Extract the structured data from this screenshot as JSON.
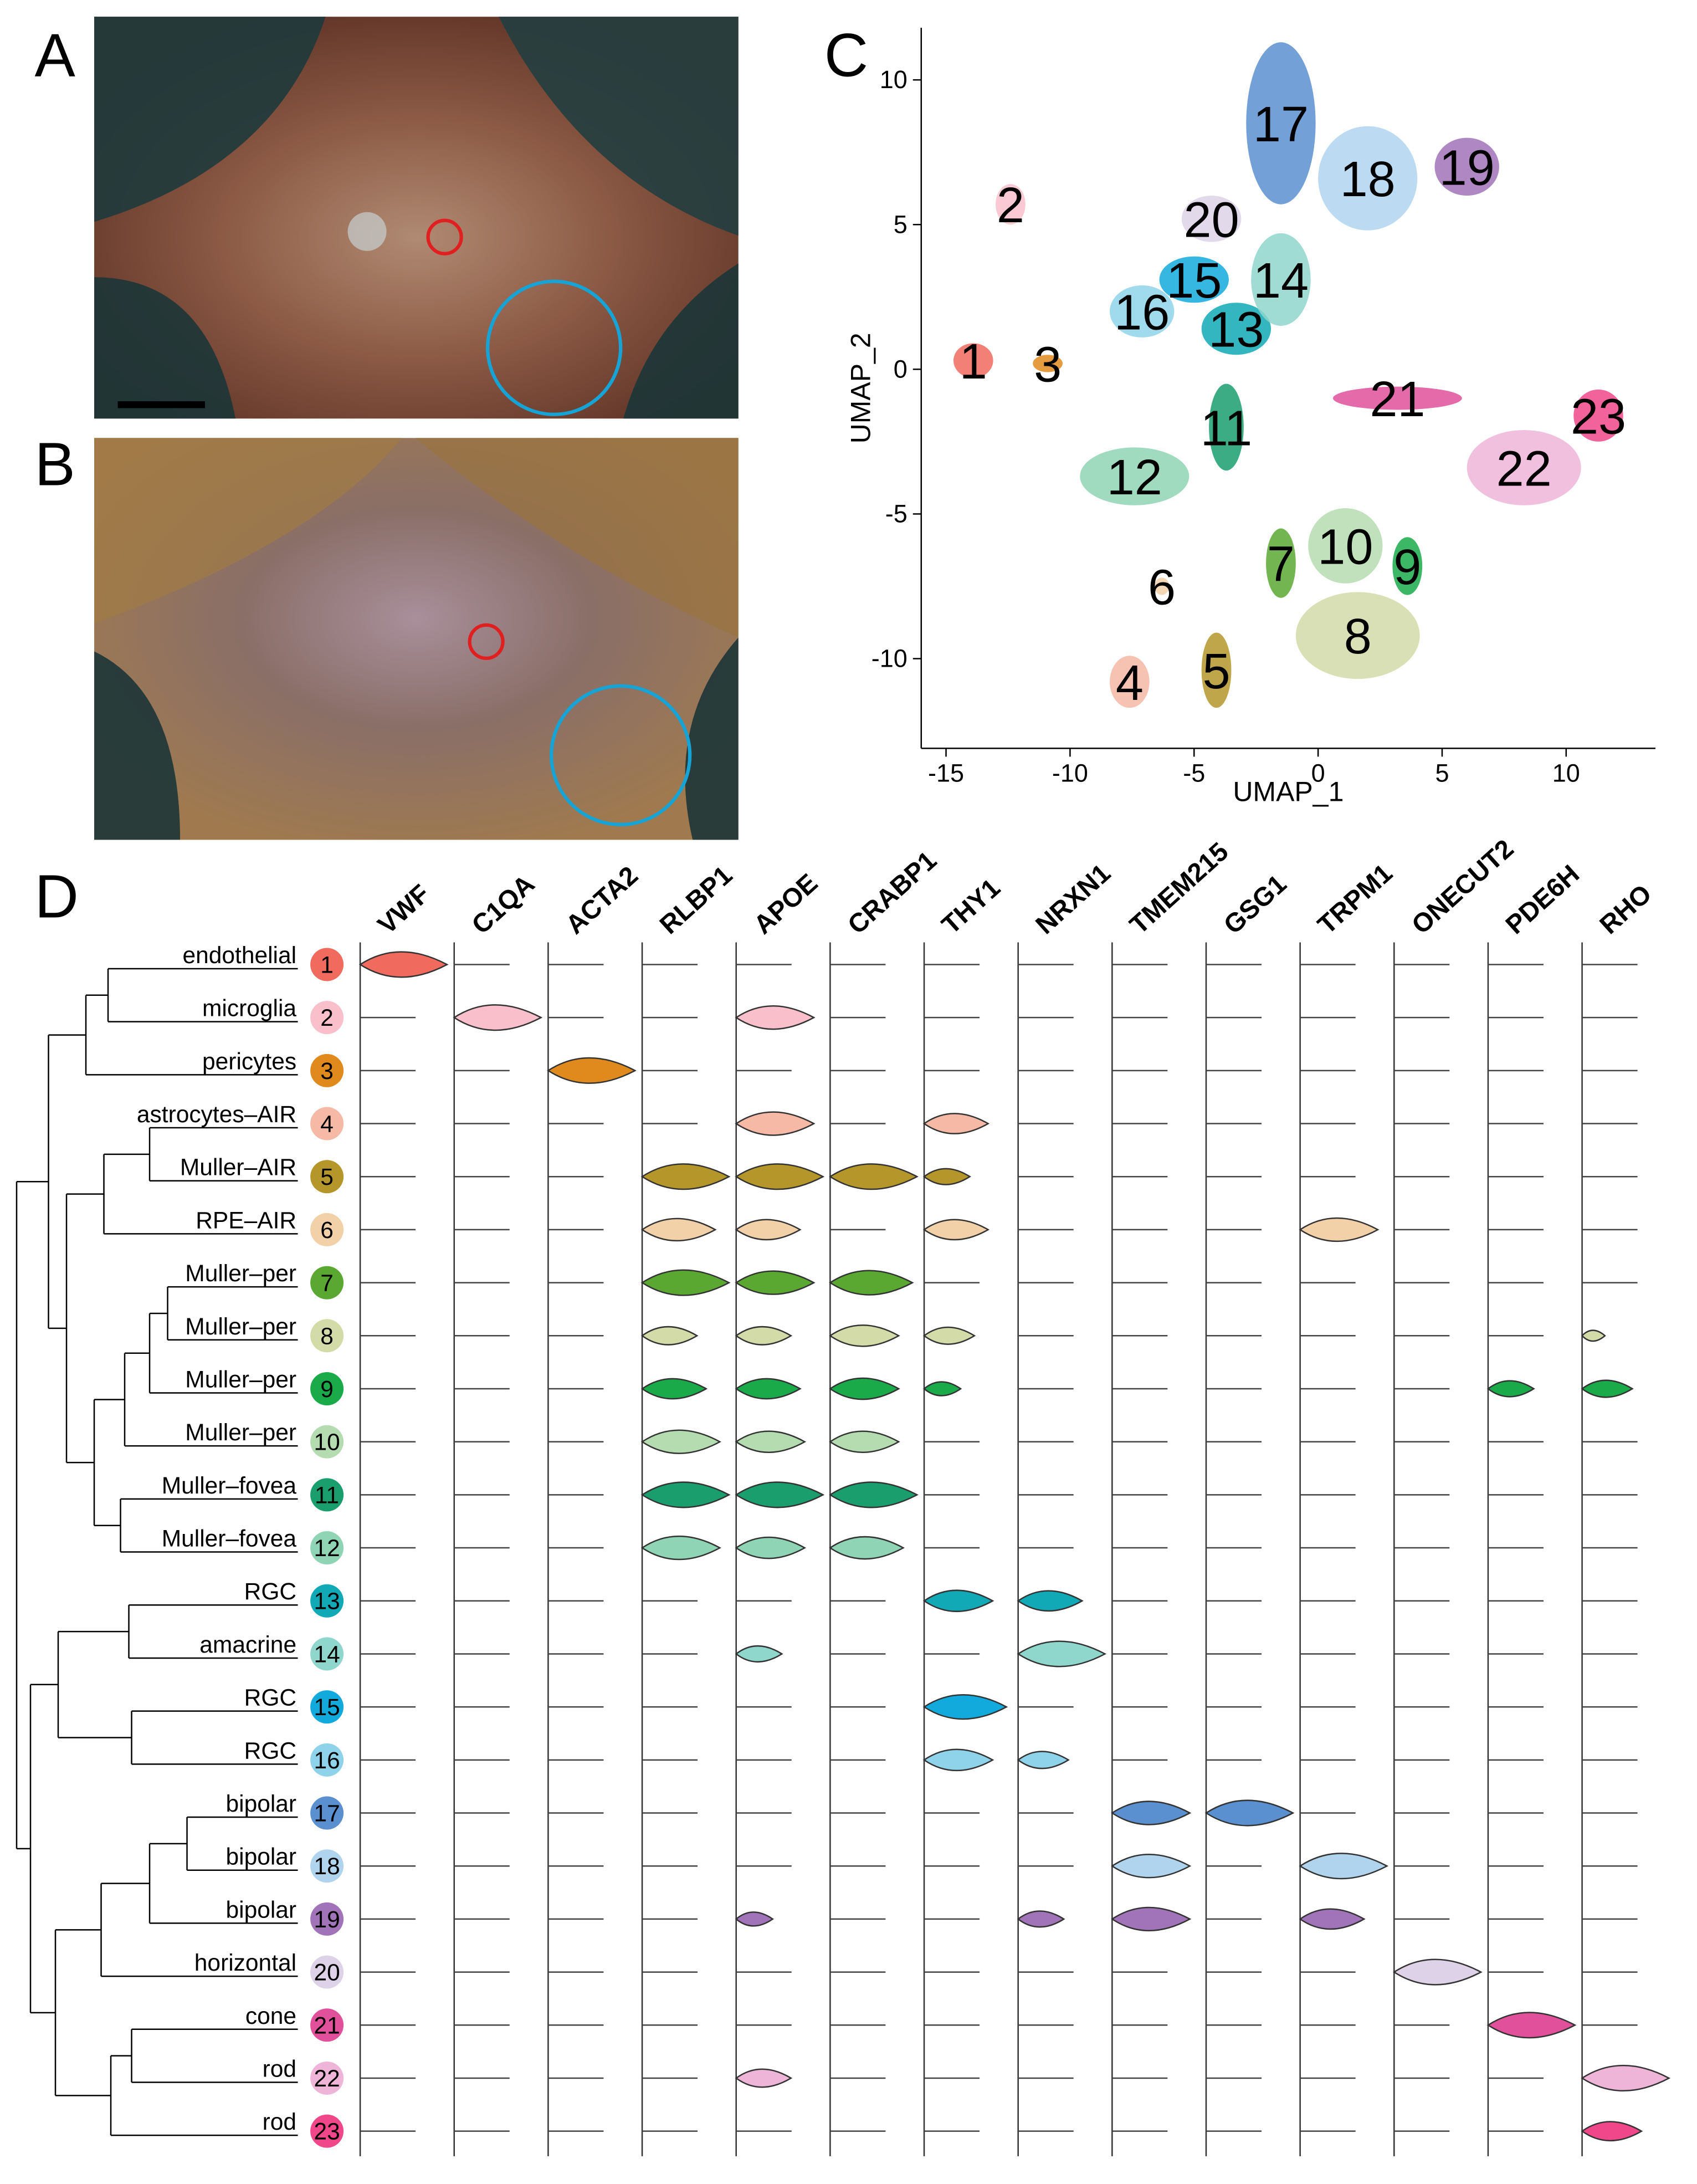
{
  "panels": [
    "A",
    "B",
    "C",
    "D"
  ],
  "chart_data": [
    {
      "type": "scatter",
      "xlabel": "UMAP_1",
      "ylabel": "UMAP_2",
      "xlim": [
        -16,
        13.6
      ],
      "ylim": [
        -13.1,
        11.8
      ],
      "xticks": [
        -15,
        -10,
        -5,
        0,
        5,
        10
      ],
      "yticks": [
        -10,
        -5,
        0,
        5,
        10
      ],
      "clusters": [
        {
          "name": "1",
          "x": -13.9,
          "y": 0.3,
          "spread": [
            0.8,
            0.6
          ],
          "color": "#f06a5e"
        },
        {
          "name": "2",
          "x": -12.4,
          "y": 5.7,
          "spread": [
            0.6,
            0.7
          ],
          "color": "#f9c0cb"
        },
        {
          "name": "3",
          "x": -10.9,
          "y": 0.2,
          "spread": [
            0.6,
            0.3
          ],
          "color": "#e08a1e"
        },
        {
          "name": "4",
          "x": -7.6,
          "y": -10.8,
          "spread": [
            0.8,
            0.9
          ],
          "color": "#f5b9a6"
        },
        {
          "name": "5",
          "x": -4.1,
          "y": -10.4,
          "spread": [
            0.6,
            1.3
          ],
          "color": "#b5962a"
        },
        {
          "name": "6",
          "x": -6.3,
          "y": -7.5,
          "spread": [
            0.3,
            0.3
          ],
          "color": "#f2d0a8"
        },
        {
          "name": "7",
          "x": -1.5,
          "y": -6.7,
          "spread": [
            0.6,
            1.2
          ],
          "color": "#5aa832"
        },
        {
          "name": "8",
          "x": 1.6,
          "y": -9.2,
          "spread": [
            2.5,
            1.5
          ],
          "color": "#d3dba8"
        },
        {
          "name": "9",
          "x": 3.6,
          "y": -6.8,
          "spread": [
            0.6,
            1.0
          ],
          "color": "#1aaa4a"
        },
        {
          "name": "10",
          "x": 1.1,
          "y": -6.1,
          "spread": [
            1.5,
            1.3
          ],
          "color": "#b5dcb0"
        },
        {
          "name": "11",
          "x": -3.7,
          "y": -2.0,
          "spread": [
            0.7,
            1.5
          ],
          "color": "#1a9e6e"
        },
        {
          "name": "12",
          "x": -7.4,
          "y": -3.7,
          "spread": [
            2.2,
            1.0
          ],
          "color": "#8fd4b4"
        },
        {
          "name": "13",
          "x": -3.3,
          "y": 1.4,
          "spread": [
            1.4,
            0.9
          ],
          "color": "#11a9b5"
        },
        {
          "name": "14",
          "x": -1.5,
          "y": 3.1,
          "spread": [
            1.2,
            1.6
          ],
          "color": "#8fd6cc"
        },
        {
          "name": "15",
          "x": -5.0,
          "y": 3.1,
          "spread": [
            1.4,
            0.8
          ],
          "color": "#12aadd"
        },
        {
          "name": "16",
          "x": -7.1,
          "y": 2.0,
          "spread": [
            1.3,
            0.9
          ],
          "color": "#8fd3ea"
        },
        {
          "name": "17",
          "x": -1.5,
          "y": 8.5,
          "spread": [
            1.4,
            2.8
          ],
          "color": "#5a8fd0"
        },
        {
          "name": "18",
          "x": 2.0,
          "y": 6.6,
          "spread": [
            2.0,
            1.8
          ],
          "color": "#b0d4ee"
        },
        {
          "name": "19",
          "x": 6.0,
          "y": 7.0,
          "spread": [
            1.3,
            1.0
          ],
          "color": "#a173b8"
        },
        {
          "name": "20",
          "x": -4.3,
          "y": 5.2,
          "spread": [
            1.2,
            0.8
          ],
          "color": "#ddd2e8"
        },
        {
          "name": "21",
          "x": 3.2,
          "y": -1.0,
          "spread": [
            2.6,
            0.4
          ],
          "color": "#e0509b"
        },
        {
          "name": "22",
          "x": 8.3,
          "y": -3.4,
          "spread": [
            2.3,
            1.3
          ],
          "color": "#eeb5d8"
        },
        {
          "name": "23",
          "x": 11.3,
          "y": -1.6,
          "spread": [
            1.0,
            0.9
          ],
          "color": "#f0478a"
        }
      ]
    },
    {
      "type": "violin",
      "genes": [
        "VWF",
        "C1QA",
        "ACTA2",
        "RLBP1",
        "APOE",
        "CRABP1",
        "THY1",
        "NRXN1",
        "TMEM215",
        "GSG1",
        "TRPM1",
        "ONECUT2",
        "PDE6H",
        "RHO"
      ],
      "cell_types": [
        "endothelial",
        "microglia",
        "pericytes",
        "astrocytes–AIR",
        "Muller–AIR",
        "RPE–AIR",
        "Muller–per",
        "Muller–per",
        "Muller–per",
        "Muller–per",
        "Muller–fovea",
        "Muller–fovea",
        "RGC",
        "amacrine",
        "RGC",
        "RGC",
        "bipolar",
        "bipolar",
        "bipolar",
        "horizontal",
        "cone",
        "rod",
        "rod"
      ],
      "clusters": [
        "1",
        "2",
        "3",
        "4",
        "5",
        "6",
        "7",
        "8",
        "9",
        "10",
        "11",
        "12",
        "13",
        "14",
        "15",
        "16",
        "17",
        "18",
        "19",
        "20",
        "21",
        "22",
        "23"
      ],
      "expression": [
        [
          0.95,
          0,
          0,
          0,
          0,
          0,
          0,
          0,
          0,
          0,
          0,
          0,
          0,
          0
        ],
        [
          0,
          0.95,
          0,
          0,
          0.85,
          0,
          0,
          0,
          0,
          0,
          0,
          0,
          0,
          0
        ],
        [
          0,
          0,
          0.95,
          0,
          0,
          0,
          0,
          0,
          0,
          0,
          0,
          0,
          0,
          0
        ],
        [
          0,
          0,
          0,
          0,
          0.85,
          0,
          0.7,
          0,
          0,
          0,
          0,
          0,
          0,
          0
        ],
        [
          0,
          0,
          0,
          0.95,
          0.95,
          0.95,
          0.5,
          0,
          0,
          0,
          0,
          0,
          0,
          0
        ],
        [
          0,
          0,
          0,
          0.8,
          0.7,
          0,
          0.7,
          0,
          0,
          0,
          0.85,
          0,
          0,
          0
        ],
        [
          0,
          0,
          0,
          0.95,
          0.85,
          0.9,
          0,
          0,
          0,
          0,
          0,
          0,
          0,
          0
        ],
        [
          0,
          0,
          0,
          0.6,
          0.6,
          0.75,
          0.55,
          0,
          0,
          0,
          0,
          0,
          0,
          0.25
        ],
        [
          0,
          0,
          0,
          0.7,
          0.7,
          0.75,
          0.4,
          0,
          0,
          0,
          0,
          0,
          0.5,
          0.55
        ],
        [
          0,
          0,
          0,
          0.85,
          0.75,
          0.75,
          0,
          0,
          0,
          0,
          0,
          0,
          0,
          0
        ],
        [
          0,
          0,
          0,
          0.95,
          0.95,
          0.95,
          0,
          0,
          0,
          0,
          0,
          0,
          0,
          0
        ],
        [
          0,
          0,
          0,
          0.85,
          0.75,
          0.8,
          0,
          0,
          0,
          0,
          0,
          0,
          0,
          0
        ],
        [
          0,
          0,
          0,
          0,
          0,
          0,
          0.75,
          0.7,
          0,
          0,
          0,
          0,
          0,
          0
        ],
        [
          0,
          0,
          0,
          0,
          0.5,
          0,
          0,
          0.95,
          0,
          0,
          0,
          0,
          0,
          0
        ],
        [
          0,
          0,
          0,
          0,
          0,
          0,
          0.9,
          0,
          0,
          0,
          0,
          0,
          0,
          0
        ],
        [
          0,
          0,
          0,
          0,
          0,
          0,
          0.75,
          0.55,
          0,
          0,
          0,
          0,
          0,
          0
        ],
        [
          0,
          0,
          0,
          0,
          0,
          0,
          0,
          0,
          0.85,
          0.95,
          0,
          0,
          0,
          0
        ],
        [
          0,
          0,
          0,
          0,
          0,
          0,
          0,
          0,
          0.85,
          0,
          0.95,
          0,
          0,
          0
        ],
        [
          0,
          0,
          0,
          0,
          0.4,
          0,
          0,
          0.5,
          0.85,
          0,
          0.7,
          0,
          0,
          0
        ],
        [
          0,
          0,
          0,
          0,
          0,
          0,
          0,
          0,
          0,
          0,
          0,
          0.95,
          0,
          0
        ],
        [
          0,
          0,
          0,
          0,
          0,
          0,
          0,
          0,
          0,
          0,
          0,
          0,
          0.95,
          0
        ],
        [
          0,
          0,
          0,
          0,
          0.6,
          0,
          0,
          0,
          0,
          0,
          0,
          0,
          0,
          0.95
        ],
        [
          0,
          0,
          0,
          0,
          0,
          0,
          0,
          0,
          0,
          0,
          0,
          0,
          0,
          0.65
        ]
      ]
    }
  ]
}
